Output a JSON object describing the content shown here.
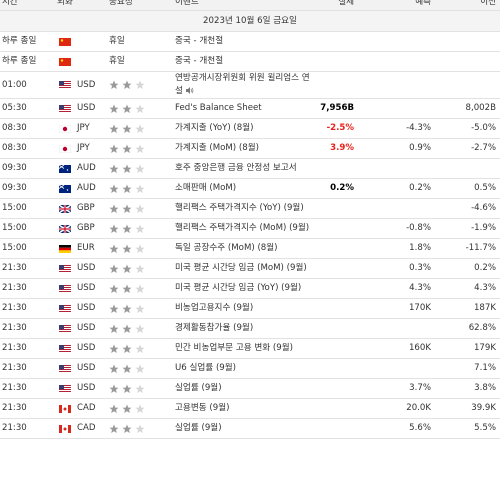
{
  "header": {
    "time": "시간",
    "currency": "외화",
    "importance": "중요성",
    "event": "이벤트",
    "actual": "실제",
    "forecast": "예측",
    "previous": "이전"
  },
  "date": "2023년 10월 6일 금요일",
  "rows": [
    {
      "time": "하루 종일",
      "importance_label": "휴일",
      "event": "중국 - 개천절"
    },
    {
      "time": "하루 종일",
      "importance_label": "휴일",
      "event": "중국 - 개천절"
    },
    {
      "time": "01:00",
      "currency": "USD",
      "stars": 2,
      "event": "연방공개시장위원회 위원 윌리엄스 연설"
    },
    {
      "time": "05:30",
      "currency": "USD",
      "stars": 2,
      "event": "Fed's Balance Sheet",
      "actual": "7,956B",
      "actual_color": "#000",
      "previous": "8,002B"
    },
    {
      "time": "08:30",
      "currency": "JPY",
      "stars": 2,
      "event": "가계지출 (YoY) (8월)",
      "actual": "-2.5%",
      "actual_color": "#e8231b",
      "forecast": "-4.3%",
      "previous": "-5.0%"
    },
    {
      "time": "08:30",
      "currency": "JPY",
      "stars": 2,
      "event": "가계지출 (MoM) (8월)",
      "actual": "3.9%",
      "actual_color": "#e8231b",
      "forecast": "0.9%",
      "previous": "-2.7%"
    },
    {
      "time": "09:30",
      "currency": "AUD",
      "stars": 2,
      "event": "호주 중앙은행 금융 안정성 보고서"
    },
    {
      "time": "09:30",
      "currency": "AUD",
      "stars": 2,
      "event": "소매판매 (MoM)",
      "actual": "0.2%",
      "actual_color": "#000",
      "forecast": "0.2%",
      "previous": "0.5%"
    },
    {
      "time": "15:00",
      "currency": "GBP",
      "stars": 2,
      "event": "핼리팩스 주택가격지수 (YoY) (9월)",
      "previous": "-4.6%"
    },
    {
      "time": "15:00",
      "currency": "GBP",
      "stars": 2,
      "event": "핼리팩스 주택가격지수 (MoM) (9월)",
      "forecast": "-0.8%",
      "previous": "-1.9%"
    },
    {
      "time": "15:00",
      "currency": "EUR",
      "stars": 2,
      "event": "독일 공장수주 (MoM) (8월)",
      "forecast": "1.8%",
      "previous": "-11.7%"
    },
    {
      "time": "21:30",
      "currency": "USD",
      "stars": 2,
      "event": "미국 평균 시간당 임금 (MoM) (9월)",
      "forecast": "0.3%",
      "previous": "0.2%"
    },
    {
      "time": "21:30",
      "currency": "USD",
      "stars": 2,
      "event": "미국 평균 시간당 임금 (YoY) (9월)",
      "forecast": "4.3%",
      "previous": "4.3%"
    },
    {
      "time": "21:30",
      "currency": "USD",
      "stars": 2,
      "event": "비농업고용지수 (9월)",
      "forecast": "170K",
      "previous": "187K"
    },
    {
      "time": "21:30",
      "currency": "USD",
      "stars": 2,
      "event": "경제활동참가율 (9월)",
      "previous": "62.8%"
    },
    {
      "time": "21:30",
      "currency": "USD",
      "stars": 2,
      "event": "민간 비농업부문 고용 변화 (9월)",
      "forecast": "160K",
      "previous": "179K"
    },
    {
      "time": "21:30",
      "currency": "USD",
      "stars": 2,
      "event": "U6 실업률 (9월)",
      "previous": "7.1%"
    },
    {
      "time": "21:30",
      "currency": "USD",
      "stars": 2,
      "event": "실업률 (9월)",
      "forecast": "3.7%",
      "previous": "3.8%"
    },
    {
      "time": "21:30",
      "currency": "CAD",
      "stars": 2,
      "event": "고용변동 (9월)",
      "forecast": "20.0K",
      "previous": "39.9K"
    },
    {
      "time": "21:30",
      "currency": "CAD",
      "stars": 2,
      "event": "실업률 (9월)",
      "forecast": "5.6%",
      "previous": "5.5%"
    }
  ]
}
